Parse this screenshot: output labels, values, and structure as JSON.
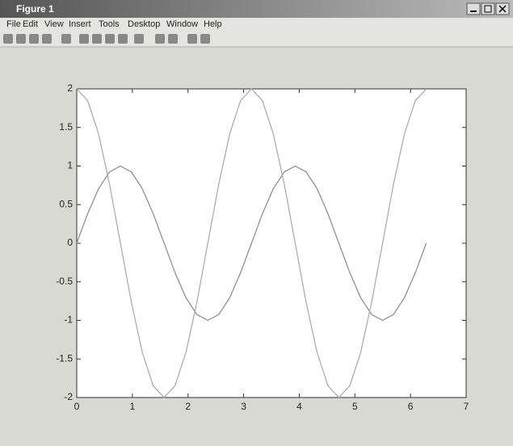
{
  "window": {
    "title": "Figure 1",
    "menu": [
      "File",
      "Edit",
      "View",
      "Insert",
      "Tools",
      "Desktop",
      "Window",
      "Help"
    ]
  },
  "chart_data": {
    "type": "line",
    "x": [
      0,
      0.196,
      0.393,
      0.589,
      0.785,
      0.982,
      1.178,
      1.374,
      1.571,
      1.767,
      1.963,
      2.16,
      2.356,
      2.553,
      2.749,
      2.945,
      3.142,
      3.338,
      3.534,
      3.731,
      3.927,
      4.123,
      4.32,
      4.516,
      4.712,
      4.909,
      5.105,
      5.301,
      5.498,
      5.694,
      5.89,
      6.087,
      6.283
    ],
    "series": [
      {
        "color": "#8a8a8a",
        "values": [
          0,
          0.3827,
          0.7071,
          0.9239,
          1,
          0.9239,
          0.7071,
          0.3827,
          0,
          -0.3827,
          -0.7071,
          -0.9239,
          -1,
          -0.9239,
          -0.7071,
          -0.3827,
          0,
          0.3827,
          0.7071,
          0.9239,
          1,
          0.9239,
          0.7071,
          0.3827,
          0,
          -0.3827,
          -0.7071,
          -0.9239,
          -1,
          -0.9239,
          -0.7071,
          -0.3827,
          0
        ]
      },
      {
        "color": "#a8a8a8",
        "values": [
          2,
          1.8478,
          1.4142,
          0.7654,
          0,
          -0.7654,
          -1.4142,
          -1.8478,
          -2,
          -1.8478,
          -1.4142,
          -0.7654,
          0,
          0.7654,
          1.4142,
          1.8478,
          2,
          1.8478,
          1.4142,
          0.7654,
          0,
          -0.7654,
          -1.4142,
          -1.8478,
          -2,
          -1.8478,
          -1.4142,
          -0.7654,
          0,
          0.7654,
          1.4142,
          1.8478,
          2
        ]
      }
    ],
    "xlim": [
      0,
      7
    ],
    "xticks": [
      0,
      1,
      2,
      3,
      4,
      5,
      6,
      7
    ],
    "ylim": [
      -2,
      2
    ],
    "yticks": [
      -2,
      -1.5,
      -1,
      -0.5,
      0,
      0.5,
      1,
      1.5,
      2
    ]
  }
}
